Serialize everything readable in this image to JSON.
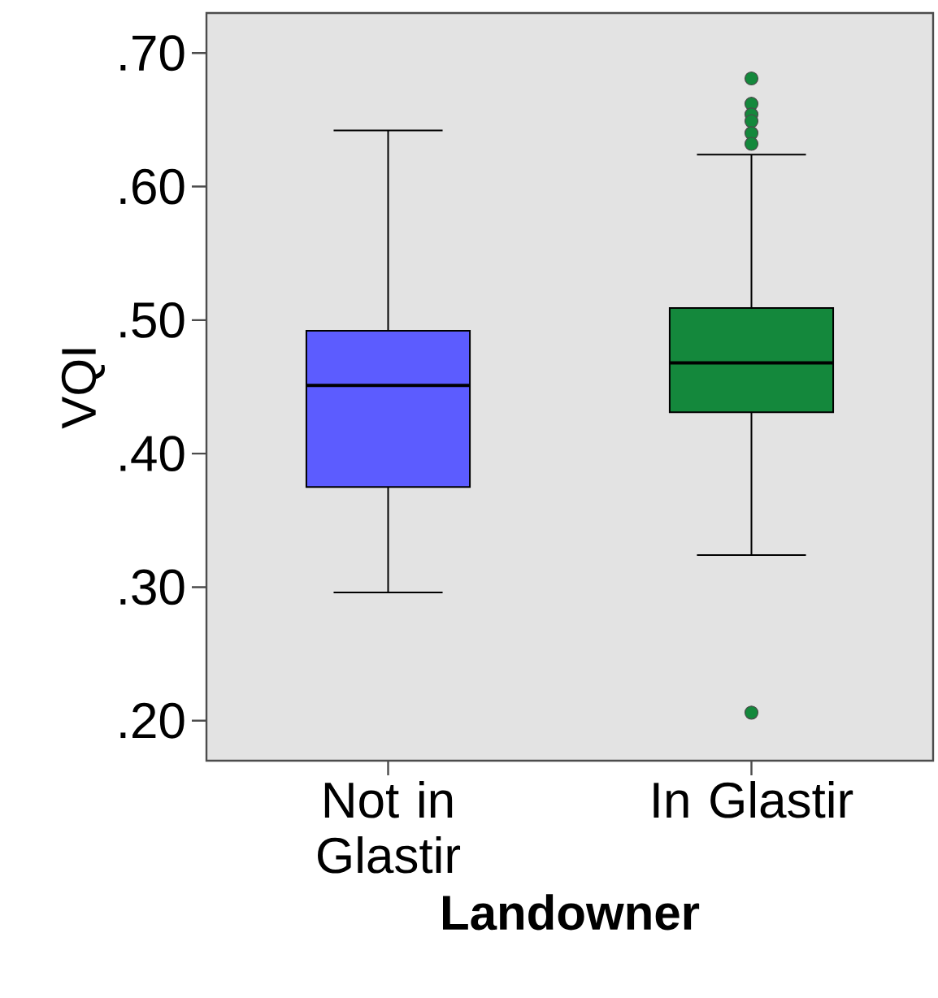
{
  "chart_data": {
    "type": "box",
    "xlabel": "Landowner",
    "ylabel": "VQI",
    "categories": [
      "Not in Glastir",
      "In Glastir"
    ],
    "colors": [
      "#5c5cff",
      "#14883c"
    ],
    "boxes": [
      {
        "low": 0.296,
        "q1": 0.375,
        "median": 0.451,
        "q3": 0.492,
        "high": 0.642
      },
      {
        "low": 0.324,
        "q1": 0.431,
        "median": 0.468,
        "q3": 0.509,
        "high": 0.624,
        "outliers": [
          0.681,
          0.662,
          0.654,
          0.649,
          0.64,
          0.632,
          0.206
        ]
      }
    ],
    "ylim": [
      0.17,
      0.73
    ],
    "yticks": [
      {
        "value": 0.2,
        "label": ".20"
      },
      {
        "value": 0.3,
        "label": ".30"
      },
      {
        "value": 0.4,
        "label": ".40"
      },
      {
        "value": 0.5,
        "label": ".50"
      },
      {
        "value": 0.6,
        "label": ".60"
      },
      {
        "value": 0.7,
        "label": ".70"
      }
    ],
    "grid": false
  }
}
